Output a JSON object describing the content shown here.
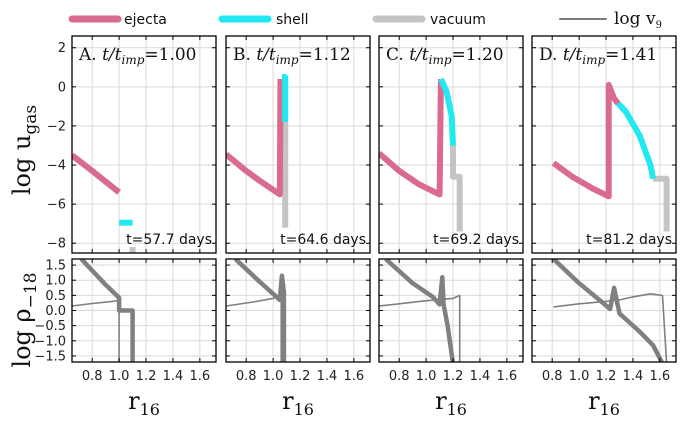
{
  "chart_data": {
    "type": "line",
    "legend": {
      "placement": "top",
      "entries": [
        {
          "key": "ejecta",
          "label": "ejecta",
          "color": "#d96b8f"
        },
        {
          "key": "shell",
          "label": "shell",
          "color": "#22e8f2"
        },
        {
          "key": "vacuum",
          "label": "vacuum",
          "color": "#c4c4c4"
        },
        {
          "key": "logv9",
          "label": "log v",
          "sub": "9",
          "color": "#7d7d7d"
        }
      ]
    },
    "axes": {
      "xlabel": "r",
      "xlabel_sub": "16",
      "top_ylabel": "log u",
      "top_ylabel_sub": "gas",
      "bottom_ylabel": "log ρ",
      "bottom_ylabel_sub": "−18",
      "xlim": [
        0.65,
        1.72
      ],
      "xticks": [
        "0.8",
        "1.0",
        "1.2",
        "1.4",
        "1.6"
      ],
      "xtick_values": [
        0.8,
        1.0,
        1.2,
        1.4,
        1.6
      ],
      "top_ylim": [
        -8.5,
        2.6
      ],
      "top_yticks": [
        "2",
        "0",
        "−2",
        "−4",
        "−6",
        "−8"
      ],
      "top_ytick_values": [
        2,
        0,
        -2,
        -4,
        -6,
        -8
      ],
      "bottom_ylim": [
        -1.7,
        1.7
      ],
      "bottom_yticks": [
        "1.5",
        "1.0",
        "0.5",
        "0.0",
        "−0.5",
        "−1.0",
        "−1.5"
      ],
      "bottom_ytick_values": [
        1.5,
        1.0,
        0.5,
        0.0,
        -0.5,
        -1.0,
        -1.5
      ],
      "grid": true
    },
    "panels": [
      {
        "letter": "A.",
        "ratio_prefix": "t/t",
        "ratio_sub": "imp",
        "ratio_value": "=1.00",
        "time_label": "t=57.7 days",
        "top": {
          "ejecta": [
            [
              0.65,
              -3.5
            ],
            [
              0.8,
              -4.3
            ],
            [
              0.9,
              -4.85
            ],
            [
              1.0,
              -5.4
            ]
          ],
          "shell": [
            [
              1.0,
              -6.95
            ],
            [
              1.1,
              -6.95
            ]
          ],
          "vacuum": [
            [
              1.1,
              -8.2
            ],
            [
              1.1,
              -8.6
            ]
          ]
        },
        "bottom": {
          "rho": [
            [
              0.72,
              1.7
            ],
            [
              0.9,
              0.85
            ],
            [
              1.0,
              0.42
            ],
            [
              1.0,
              0.0
            ],
            [
              1.1,
              0.0
            ],
            [
              1.1,
              -1.75
            ]
          ],
          "logv9": [
            [
              0.65,
              0.15
            ],
            [
              0.8,
              0.23
            ],
            [
              0.95,
              0.3
            ],
            [
              1.0,
              0.34
            ],
            [
              1.0,
              -1.75
            ]
          ]
        }
      },
      {
        "letter": "B.",
        "ratio_prefix": "t/t",
        "ratio_sub": "imp",
        "ratio_value": "=1.12",
        "time_label": "t=64.6 days",
        "top": {
          "ejecta": [
            [
              0.65,
              -3.45
            ],
            [
              0.8,
              -4.3
            ],
            [
              0.9,
              -4.8
            ],
            [
              1.05,
              -5.5
            ],
            [
              1.055,
              0.4
            ]
          ],
          "shell": [
            [
              1.065,
              0.5
            ],
            [
              1.09,
              0.5
            ],
            [
              1.09,
              -1.8
            ]
          ],
          "vacuum": [
            [
              1.09,
              -1.8
            ],
            [
              1.09,
              -7.2
            ]
          ]
        },
        "bottom": {
          "rho": [
            [
              0.72,
              1.7
            ],
            [
              0.9,
              0.95
            ],
            [
              1.0,
              0.55
            ],
            [
              1.05,
              0.35
            ],
            [
              1.065,
              1.15
            ],
            [
              1.08,
              0.6
            ],
            [
              1.08,
              -1.75
            ]
          ],
          "logv9": [
            [
              0.65,
              0.15
            ],
            [
              0.85,
              0.28
            ],
            [
              1.0,
              0.4
            ],
            [
              1.045,
              0.5
            ],
            [
              1.06,
              0.35
            ],
            [
              1.06,
              -1.75
            ]
          ]
        }
      },
      {
        "letter": "C.",
        "ratio_prefix": "t/t",
        "ratio_sub": "imp",
        "ratio_value": "=1.20",
        "time_label": "t=69.2 days",
        "top": {
          "ejecta": [
            [
              0.65,
              -3.4
            ],
            [
              0.8,
              -4.3
            ],
            [
              0.95,
              -5.0
            ],
            [
              1.1,
              -5.5
            ],
            [
              1.11,
              0.4
            ]
          ],
          "shell": [
            [
              1.11,
              0.4
            ],
            [
              1.15,
              -0.2
            ],
            [
              1.19,
              -1.5
            ],
            [
              1.2,
              -3.0
            ]
          ],
          "vacuum": [
            [
              1.2,
              -3.0
            ],
            [
              1.2,
              -4.6
            ],
            [
              1.25,
              -4.6
            ],
            [
              1.25,
              -7.4
            ]
          ]
        },
        "bottom": {
          "rho": [
            [
              0.7,
              1.7
            ],
            [
              0.9,
              0.9
            ],
            [
              1.05,
              0.45
            ],
            [
              1.1,
              0.2
            ],
            [
              1.12,
              1.1
            ],
            [
              1.13,
              0.2
            ],
            [
              1.16,
              -0.5
            ],
            [
              1.2,
              -1.75
            ]
          ],
          "logv9": [
            [
              0.65,
              0.15
            ],
            [
              0.8,
              0.22
            ],
            [
              0.95,
              0.3
            ],
            [
              1.09,
              0.36
            ],
            [
              1.2,
              0.4
            ],
            [
              1.25,
              0.5
            ],
            [
              1.25,
              -1.75
            ]
          ]
        }
      },
      {
        "letter": "D.",
        "ratio_prefix": "t/t",
        "ratio_sub": "imp",
        "ratio_value": "=1.41",
        "time_label": "t=81.2 days",
        "top": {
          "ejecta": [
            [
              0.81,
              -3.9
            ],
            [
              0.95,
              -4.6
            ],
            [
              1.1,
              -5.2
            ],
            [
              1.22,
              -5.6
            ],
            [
              1.22,
              0.1
            ],
            [
              1.26,
              -0.6
            ],
            [
              1.29,
              -0.85
            ]
          ],
          "shell": [
            [
              1.29,
              -0.85
            ],
            [
              1.35,
              -1.3
            ],
            [
              1.45,
              -2.5
            ],
            [
              1.53,
              -4.0
            ],
            [
              1.55,
              -4.7
            ]
          ],
          "vacuum": [
            [
              1.55,
              -4.7
            ],
            [
              1.65,
              -4.7
            ],
            [
              1.65,
              -7.4
            ]
          ]
        },
        "bottom": {
          "rho": [
            [
              0.81,
              1.7
            ],
            [
              1.0,
              0.9
            ],
            [
              1.15,
              0.35
            ],
            [
              1.23,
              0.05
            ],
            [
              1.26,
              0.75
            ],
            [
              1.3,
              -0.1
            ],
            [
              1.45,
              -0.7
            ],
            [
              1.55,
              -1.15
            ],
            [
              1.62,
              -1.75
            ]
          ],
          "logv9": [
            [
              0.81,
              0.12
            ],
            [
              1.0,
              0.22
            ],
            [
              1.2,
              0.3
            ],
            [
              1.3,
              0.35
            ],
            [
              1.4,
              0.45
            ],
            [
              1.53,
              0.55
            ],
            [
              1.62,
              0.5
            ],
            [
              1.65,
              -1.75
            ]
          ]
        }
      }
    ]
  }
}
